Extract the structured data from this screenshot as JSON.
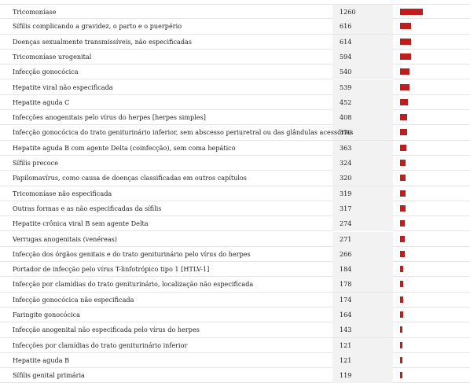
{
  "chart_data": {
    "type": "table",
    "bar_color": "#c01d1d",
    "max_value": 1260,
    "rows": [
      {
        "label": "Tricomoníase",
        "value": 1260
      },
      {
        "label": "Sífilis complicando a gravidez, o parto e o puerpério",
        "value": 616
      },
      {
        "label": "Doenças sexualmente transmissíveis, não especificadas",
        "value": 614
      },
      {
        "label": "Tricomoníase urogenital",
        "value": 594
      },
      {
        "label": "Infecção gonocócica",
        "value": 540
      },
      {
        "label": "Hepatite viral não especificada",
        "value": 539
      },
      {
        "label": "Hepatite aguda C",
        "value": 452
      },
      {
        "label": "Infecções anogenitais pelo vírus do herpes [herpes simples]",
        "value": 408
      },
      {
        "label": "Infecção gonocócica do trato geniturinário inferior, sem abscesso periuretral ou das glândulas acessórias",
        "value": 370
      },
      {
        "label": "Hepatite aguda B com agente Delta (coinfecção), sem coma hepático",
        "value": 363
      },
      {
        "label": "Sífilis precoce",
        "value": 324
      },
      {
        "label": "Papilomavírus, como causa de doenças classificadas em outros capítulos",
        "value": 320
      },
      {
        "label": "Tricomoníase não especificada",
        "value": 319
      },
      {
        "label": "Outras formas e as não especificadas da sífilis",
        "value": 317
      },
      {
        "label": "Hepatite crônica viral B sem agente Delta",
        "value": 274
      },
      {
        "label": "Verrugas anogenitais (venéreas)",
        "value": 271
      },
      {
        "label": "Infecção dos órgãos genitais e do trato geniturinário pelo vírus do herpes",
        "value": 266
      },
      {
        "label": "Portador de infecção pelo vírus T-linfotrópico tipo 1 [HTLV-1]",
        "value": 184
      },
      {
        "label": "Infecção por clamídias do trato geniturinário, localização não especificada",
        "value": 178
      },
      {
        "label": "Infecção gonocócica não especificada",
        "value": 174
      },
      {
        "label": "Faringite gonocócica",
        "value": 164
      },
      {
        "label": "Infecção anogenital não especificada pelo vírus do herpes",
        "value": 143
      },
      {
        "label": "Infecções por clamídias do trato geniturinário inferior",
        "value": 121
      },
      {
        "label": "Hepatite aguda B",
        "value": 121
      },
      {
        "label": "Sífilis genital primária",
        "value": 119
      }
    ]
  }
}
